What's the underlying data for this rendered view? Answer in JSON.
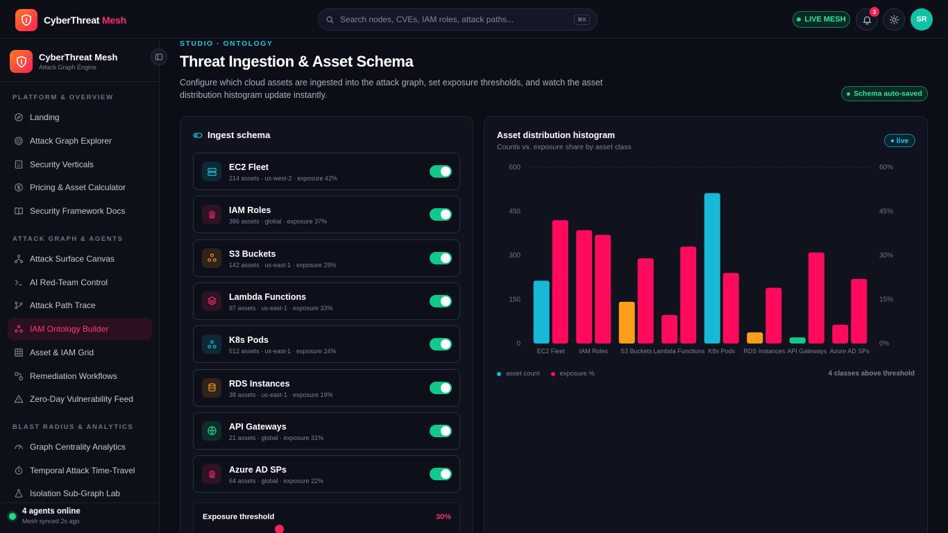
{
  "topbar": {
    "brand_main": "CyberThreat",
    "brand_accent": "Mesh",
    "search_placeholder": "Search nodes, CVEs, IAM roles, attack paths...",
    "shortcut": "⌘K",
    "live_label": "LIVE MESH",
    "notifications": "3",
    "avatar": "SR"
  },
  "sidebar": {
    "brand_title": "CyberThreat Mesh",
    "brand_sub": "Attack Graph Engine",
    "sections": [
      {
        "title": "PLATFORM & OVERVIEW",
        "items": [
          "Landing",
          "Attack Graph Explorer",
          "Security Verticals",
          "Pricing & Asset Calculator",
          "Security Framework Docs"
        ]
      },
      {
        "title": "ATTACK GRAPH & AGENTS",
        "items": [
          "Attack Surface Canvas",
          "AI Red-Team Control",
          "Attack Path Trace",
          "IAM Ontology Builder",
          "Asset & IAM Grid",
          "Remediation Workflows",
          "Zero-Day Vulnerability Feed"
        ]
      },
      {
        "title": "BLAST RADIUS & ANALYTICS",
        "items": [
          "Graph Centrality Analytics",
          "Temporal Attack Time-Travel",
          "Isolation Sub-Graph Lab"
        ]
      }
    ],
    "footer_title": "4 agents online",
    "footer_sub": "Mesh synced 2s ago"
  },
  "main": {
    "eyebrow": "STUDIO · ONTOLOGY",
    "title": "Threat Ingestion & Asset Schema",
    "description": "Configure which cloud assets are ingested into the attack graph, set exposure thresholds, and watch the asset distribution histogram update instantly.",
    "autosave": "Schema auto-saved"
  },
  "schema": {
    "title": "Ingest schema",
    "assets": [
      {
        "name": "EC2 Fleet",
        "meta": "214 assets · us-west-2 · exposure 42%",
        "icon": "server-icon",
        "color": "#18c8e0",
        "enabled": true
      },
      {
        "name": "IAM Roles",
        "meta": "386 assets · global · exposure 37%",
        "icon": "fingerprint-icon",
        "color": "#ff2d6b",
        "enabled": true
      },
      {
        "name": "S3 Buckets",
        "meta": "142 assets · us-east-1 · exposure 29%",
        "icon": "cluster-icon",
        "color": "#ff9e1a",
        "enabled": true
      },
      {
        "name": "Lambda Functions",
        "meta": "97 assets · us-east-1 · exposure 33%",
        "icon": "layers-icon",
        "color": "#ff2d6b",
        "enabled": true
      },
      {
        "name": "K8s Pods",
        "meta": "512 assets · us-east-1 · exposure 24%",
        "icon": "cluster-icon",
        "color": "#18c8e0",
        "enabled": true
      },
      {
        "name": "RDS Instances",
        "meta": "38 assets · us-east-1 · exposure 19%",
        "icon": "database-icon",
        "color": "#ff9e1a",
        "enabled": true
      },
      {
        "name": "API Gateways",
        "meta": "21 assets · global · exposure 31%",
        "icon": "globe-icon",
        "color": "#22d98f",
        "enabled": true
      },
      {
        "name": "Azure AD SPs",
        "meta": "64 assets · global · exposure 22%",
        "icon": "fingerprint-icon",
        "color": "#ff2d6b",
        "enabled": true
      }
    ],
    "threshold_label": "Exposure threshold",
    "threshold_value": "30%"
  },
  "histogram": {
    "title": "Asset distribution histogram",
    "subtitle": "Counts vs. exposure share by asset class",
    "live": "live",
    "legend_count": "asset count",
    "legend_exposure": "exposure %",
    "above_threshold": "4 classes above threshold"
  },
  "chart_data": {
    "type": "bar",
    "categories": [
      "EC2 Fleet",
      "IAM Roles",
      "S3 Buckets",
      "Lambda Functions",
      "K8s Pods",
      "RDS Instances",
      "API Gateways",
      "Azure AD SPs"
    ],
    "series": [
      {
        "name": "asset count",
        "axis": "left",
        "values": [
          214,
          386,
          142,
          97,
          512,
          38,
          21,
          64
        ],
        "colors": [
          "#18b8d6",
          "#ff0a5c",
          "#ff9e1a",
          "#ff0a5c",
          "#18b8d6",
          "#ff9e1a",
          "#10c98a",
          "#ff0a5c"
        ]
      },
      {
        "name": "exposure %",
        "axis": "right",
        "values": [
          42,
          37,
          29,
          33,
          24,
          19,
          31,
          22
        ],
        "color": "#ff0a5c"
      }
    ],
    "ylim_left": [
      0,
      600
    ],
    "yticks_left": [
      "0",
      "150",
      "300",
      "450",
      "600"
    ],
    "ylim_right": [
      0,
      60
    ],
    "yticks_right": [
      "0%",
      "15%",
      "30%",
      "45%",
      "60%"
    ],
    "grid": true,
    "legend": "bottom-left"
  },
  "colors": {
    "accent_pink": "#ff2d6b",
    "accent_cyan": "#18c8e0",
    "accent_green": "#22d98f",
    "accent_orange": "#ff9e1a"
  }
}
